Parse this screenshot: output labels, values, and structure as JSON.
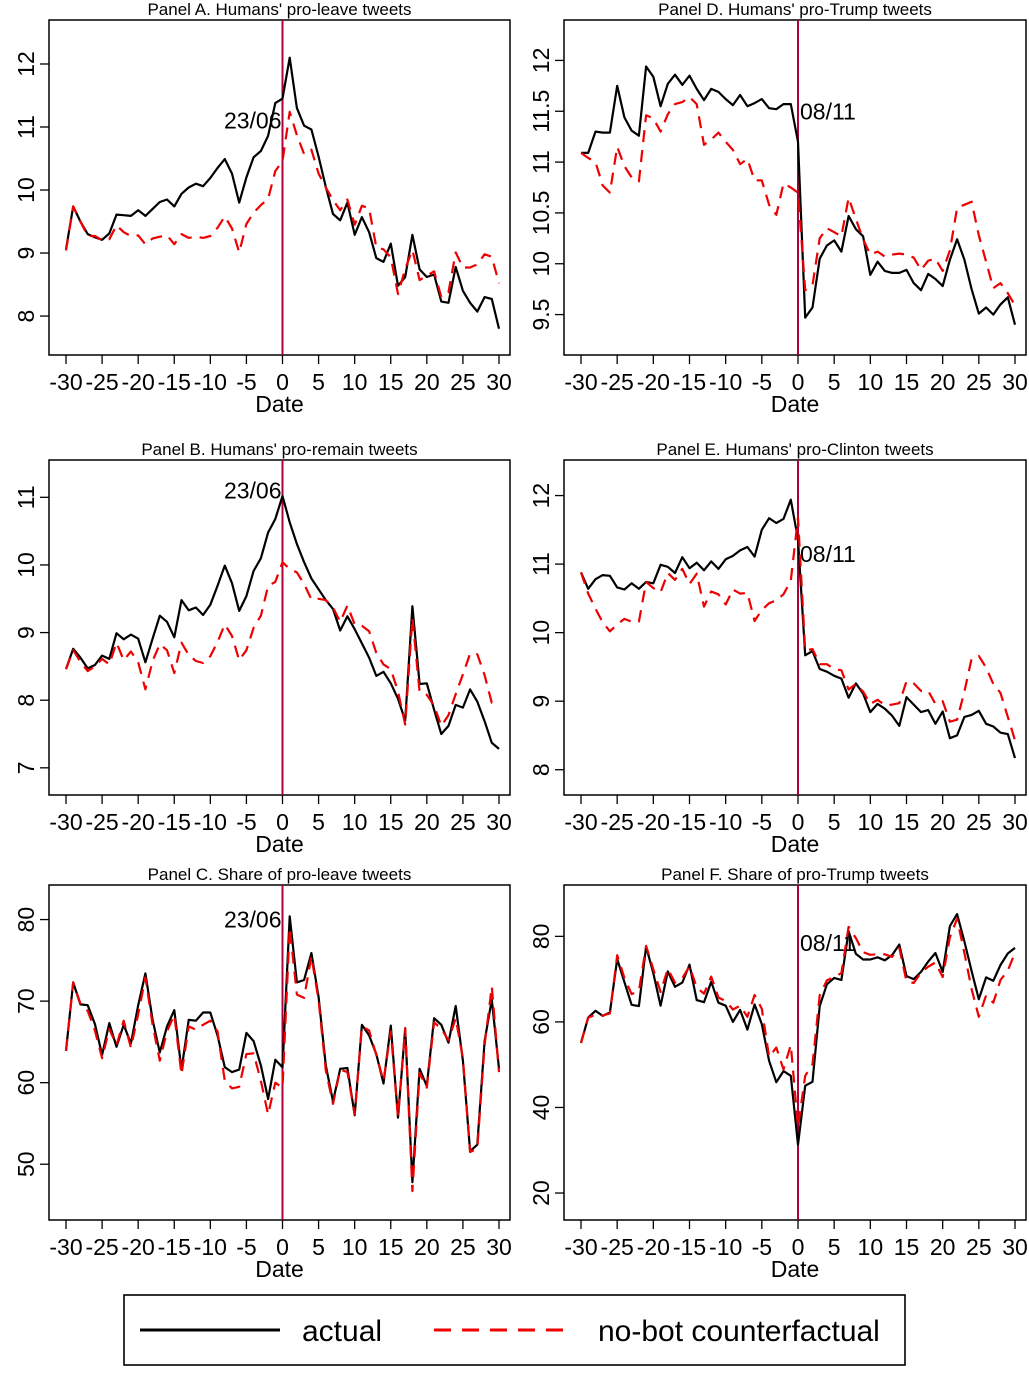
{
  "chart_data": [
    {
      "type": "line",
      "title": "Panel A. Humans' pro-leave tweets",
      "xlabel": "Date",
      "ylabel": "",
      "xlim": [
        -30,
        30
      ],
      "ylim": [
        7.62,
        12.46
      ],
      "x_ticks": [
        -30,
        -25,
        -20,
        -15,
        -10,
        -5,
        0,
        5,
        10,
        15,
        20,
        25,
        30
      ],
      "y_ticks": [
        8,
        9,
        10,
        11,
        12
      ],
      "event": {
        "x": 0,
        "label": "23/06",
        "label_y": 11.1,
        "label_side": "left"
      },
      "series": [
        {
          "name": "actual",
          "color": "#000000",
          "dash": "solid",
          "values": [
            9.06,
            9.74,
            9.5,
            9.3,
            9.25,
            9.21,
            9.31,
            9.61,
            9.6,
            9.59,
            9.68,
            9.59,
            9.7,
            9.81,
            9.85,
            9.74,
            9.94,
            10.04,
            10.1,
            10.06,
            10.19,
            10.35,
            10.49,
            10.26,
            9.8,
            10.2,
            10.52,
            10.62,
            10.86,
            11.38,
            11.45,
            12.1,
            11.3,
            11.02,
            10.96,
            10.53,
            10.05,
            9.62,
            9.52,
            9.8,
            9.29,
            9.57,
            9.33,
            8.92,
            8.86,
            9.15,
            8.48,
            8.62,
            9.29,
            8.74,
            8.62,
            8.66,
            8.23,
            8.21,
            8.78,
            8.4,
            8.21,
            8.07,
            8.3,
            8.27,
            7.8
          ]
        },
        {
          "name": "no-bot counterfactual",
          "color": "#ee0000",
          "dash": "12,8",
          "values": [
            9.04,
            9.74,
            9.5,
            9.27,
            9.27,
            9.2,
            9.22,
            9.44,
            9.33,
            9.27,
            9.28,
            9.14,
            9.23,
            9.26,
            9.28,
            9.14,
            9.3,
            9.24,
            9.26,
            9.24,
            9.27,
            9.4,
            9.58,
            9.39,
            9.01,
            9.46,
            9.64,
            9.76,
            9.86,
            10.3,
            10.46,
            11.24,
            10.87,
            10.57,
            10.64,
            10.26,
            10.04,
            9.84,
            9.68,
            9.85,
            9.45,
            9.75,
            9.71,
            9.09,
            9.06,
            8.93,
            8.35,
            8.75,
            9.05,
            8.57,
            8.64,
            8.71,
            8.3,
            8.38,
            9.01,
            8.77,
            8.77,
            8.82,
            8.98,
            8.94,
            8.52
          ]
        }
      ]
    },
    {
      "type": "line",
      "title": "Panel D. Humans' pro-Trump tweets",
      "xlabel": "Date",
      "ylabel": "",
      "xlim": [
        -30,
        30
      ],
      "ylim": [
        9.25,
        12.25
      ],
      "x_ticks": [
        -30,
        -25,
        -20,
        -15,
        -10,
        -5,
        0,
        5,
        10,
        15,
        20,
        25,
        30
      ],
      "y_ticks": [
        9.5,
        10,
        10.5,
        11,
        11.5,
        12
      ],
      "event": {
        "x": 0,
        "label": "08/11",
        "label_y": 11.5,
        "label_side": "right"
      },
      "series": [
        {
          "name": "actual",
          "color": "#000000",
          "dash": "solid",
          "values": [
            11.09,
            11.09,
            11.3,
            11.29,
            11.29,
            11.75,
            11.44,
            11.31,
            11.26,
            11.94,
            11.84,
            11.55,
            11.77,
            11.86,
            11.76,
            11.85,
            11.72,
            11.61,
            11.72,
            11.69,
            11.62,
            11.56,
            11.66,
            11.55,
            11.58,
            11.62,
            11.53,
            11.52,
            11.57,
            11.57,
            11.2,
            9.47,
            9.57,
            10.05,
            10.18,
            10.23,
            10.12,
            10.47,
            10.34,
            10.27,
            9.89,
            10.02,
            9.93,
            9.91,
            9.91,
            9.94,
            9.81,
            9.74,
            9.9,
            9.85,
            9.78,
            10.04,
            10.24,
            10.04,
            9.75,
            9.51,
            9.57,
            9.5,
            9.6,
            9.67,
            9.4
          ]
        },
        {
          "name": "no-bot counterfactual",
          "color": "#ee0000",
          "dash": "12,8",
          "values": [
            11.09,
            11.04,
            11.0,
            10.77,
            10.7,
            11.15,
            10.96,
            10.85,
            10.81,
            11.46,
            11.43,
            11.3,
            11.47,
            11.57,
            11.59,
            11.64,
            11.57,
            11.17,
            11.22,
            11.29,
            11.2,
            11.12,
            10.98,
            11.03,
            10.82,
            10.82,
            10.58,
            10.48,
            10.79,
            10.75,
            10.7,
            9.74,
            9.79,
            10.25,
            10.35,
            10.31,
            10.27,
            10.65,
            10.44,
            10.24,
            10.09,
            10.12,
            10.07,
            10.09,
            10.1,
            10.09,
            10.06,
            9.94,
            10.03,
            10.05,
            9.93,
            10.13,
            10.55,
            10.58,
            10.61,
            10.28,
            10.02,
            9.76,
            9.81,
            9.71,
            9.59
          ]
        }
      ]
    },
    {
      "type": "line",
      "title": "Panel B. Humans' pro-remain tweets",
      "xlabel": "Date",
      "ylabel": "",
      "xlim": [
        -30,
        30
      ],
      "ylim": [
        6.82,
        11.33
      ],
      "x_ticks": [
        -30,
        -25,
        -20,
        -15,
        -10,
        -5,
        0,
        5,
        10,
        15,
        20,
        25,
        30
      ],
      "y_ticks": [
        7,
        8,
        9,
        10,
        11
      ],
      "event": {
        "x": 0,
        "label": "23/06",
        "label_y": 11.1,
        "label_side": "left"
      },
      "series": [
        {
          "name": "actual",
          "color": "#000000",
          "dash": "solid",
          "values": [
            8.46,
            8.76,
            8.63,
            8.47,
            8.52,
            8.66,
            8.61,
            8.99,
            8.9,
            8.97,
            8.91,
            8.56,
            8.91,
            9.25,
            9.16,
            8.93,
            9.48,
            9.33,
            9.37,
            9.26,
            9.41,
            9.69,
            9.99,
            9.73,
            9.32,
            9.54,
            9.91,
            10.1,
            10.48,
            10.68,
            11.02,
            10.63,
            10.31,
            10.04,
            9.8,
            9.64,
            9.48,
            9.35,
            9.03,
            9.24,
            9.05,
            8.84,
            8.63,
            8.36,
            8.42,
            8.25,
            8.02,
            7.7,
            9.39,
            8.24,
            8.25,
            7.86,
            7.5,
            7.62,
            7.93,
            7.89,
            8.16,
            7.98,
            7.69,
            7.37,
            7.28
          ]
        },
        {
          "name": "no-bot counterfactual",
          "color": "#ee0000",
          "dash": "12,8",
          "values": [
            8.46,
            8.74,
            8.57,
            8.43,
            8.5,
            8.61,
            8.53,
            8.85,
            8.59,
            8.72,
            8.56,
            8.16,
            8.58,
            8.83,
            8.74,
            8.4,
            8.85,
            8.67,
            8.58,
            8.55,
            8.65,
            8.86,
            9.12,
            8.95,
            8.59,
            8.74,
            9.07,
            9.25,
            9.69,
            9.75,
            10.04,
            9.94,
            9.89,
            9.72,
            9.49,
            9.5,
            9.48,
            9.37,
            9.16,
            9.4,
            9.12,
            9.1,
            9.02,
            8.7,
            8.53,
            8.46,
            8.13,
            7.64,
            9.22,
            8.12,
            8.08,
            7.92,
            7.62,
            7.78,
            8.09,
            8.38,
            8.69,
            8.68,
            8.37,
            7.96,
            7.96
          ]
        }
      ]
    },
    {
      "type": "line",
      "title": "Panel E. Humans' pro-Clinton tweets",
      "xlabel": "Date",
      "ylabel": "",
      "xlim": [
        -30,
        30
      ],
      "ylim": [
        7.85,
        12.3
      ],
      "x_ticks": [
        -30,
        -25,
        -20,
        -15,
        -10,
        -5,
        0,
        5,
        10,
        15,
        20,
        25,
        30
      ],
      "y_ticks": [
        8,
        9,
        10,
        11,
        12
      ],
      "event": {
        "x": 0,
        "label": "08/11",
        "label_y": 11.15,
        "label_side": "right"
      },
      "series": [
        {
          "name": "actual",
          "color": "#000000",
          "dash": "solid",
          "values": [
            10.88,
            10.64,
            10.78,
            10.84,
            10.83,
            10.66,
            10.63,
            10.72,
            10.64,
            10.74,
            10.72,
            10.99,
            10.96,
            10.87,
            11.1,
            10.94,
            11.02,
            10.91,
            11.04,
            10.93,
            11.07,
            11.12,
            11.2,
            11.25,
            11.11,
            11.5,
            11.67,
            11.6,
            11.66,
            11.94,
            11.36,
            9.67,
            9.73,
            9.47,
            9.43,
            9.37,
            9.33,
            9.05,
            9.26,
            9.11,
            8.84,
            8.96,
            8.89,
            8.79,
            8.64,
            9.06,
            8.95,
            8.84,
            8.87,
            8.67,
            8.85,
            8.46,
            8.5,
            8.77,
            8.8,
            8.86,
            8.67,
            8.63,
            8.54,
            8.52,
            8.17
          ]
        },
        {
          "name": "no-bot counterfactual",
          "color": "#ee0000",
          "dash": "12,8",
          "values": [
            10.88,
            10.57,
            10.35,
            10.15,
            10.02,
            10.12,
            10.2,
            10.16,
            10.16,
            10.74,
            10.65,
            10.59,
            10.87,
            10.77,
            10.93,
            10.71,
            10.86,
            10.38,
            10.6,
            10.56,
            10.41,
            10.63,
            10.57,
            10.58,
            10.17,
            10.33,
            10.43,
            10.47,
            10.56,
            10.76,
            11.68,
            9.74,
            9.76,
            9.54,
            9.54,
            9.47,
            9.45,
            9.17,
            9.25,
            9.14,
            8.96,
            9.02,
            8.94,
            8.95,
            8.97,
            9.29,
            9.26,
            9.15,
            9.15,
            8.96,
            9.0,
            8.7,
            8.73,
            9.14,
            9.62,
            9.66,
            9.49,
            9.25,
            9.12,
            8.77,
            8.43
          ]
        }
      ]
    },
    {
      "type": "line",
      "title": "Panel C. Share of pro-leave tweets",
      "xlabel": "Date",
      "ylabel": "",
      "xlim": [
        -30,
        30
      ],
      "ylim": [
        45,
        82.4
      ],
      "x_ticks": [
        -30,
        -25,
        -20,
        -15,
        -10,
        -5,
        0,
        5,
        10,
        15,
        20,
        25,
        30
      ],
      "y_ticks": [
        50,
        60,
        70,
        80
      ],
      "event": {
        "x": 0,
        "label": "23/06",
        "label_y": 80,
        "label_side": "left"
      },
      "series": [
        {
          "name": "actual",
          "color": "#000000",
          "dash": "solid",
          "values": [
            63.9,
            72.3,
            69.6,
            69.5,
            67.2,
            63.4,
            67.3,
            64.4,
            67.1,
            64.8,
            69.5,
            73.4,
            67.7,
            63.7,
            66.9,
            68.9,
            61.6,
            67.7,
            67.6,
            68.6,
            68.6,
            65.8,
            61.9,
            61.3,
            61.6,
            66.1,
            65.1,
            62.1,
            58.0,
            62.8,
            61.9,
            80.4,
            72.3,
            72.6,
            75.9,
            70.5,
            62.1,
            57.7,
            61.7,
            61.8,
            56.0,
            67.1,
            65.8,
            63.5,
            59.9,
            67.0,
            55.7,
            66.6,
            47.8,
            61.7,
            59.6,
            67.9,
            67.1,
            64.9,
            69.4,
            62.7,
            51.6,
            52.4,
            65.1,
            70.2,
            61.7
          ]
        },
        {
          "name": "no-bot counterfactual",
          "color": "#ee0000",
          "dash": "12,8",
          "values": [
            63.9,
            72.3,
            69.7,
            68.8,
            66.4,
            63.0,
            66.6,
            64.6,
            67.6,
            64.3,
            68.4,
            72.9,
            67.1,
            62.7,
            66.3,
            68.3,
            61.0,
            66.9,
            66.5,
            67.1,
            67.6,
            66.3,
            60.2,
            59.3,
            59.5,
            63.5,
            63.6,
            60.2,
            56.1,
            60.0,
            59.4,
            79.0,
            70.8,
            70.4,
            75.5,
            70.1,
            61.5,
            57.4,
            61.6,
            61.3,
            56.1,
            66.9,
            66.4,
            63.4,
            60.2,
            66.3,
            55.8,
            66.7,
            46.7,
            61.2,
            59.4,
            67.4,
            66.6,
            65.2,
            67.9,
            63.0,
            51.5,
            51.9,
            64.6,
            71.8,
            61.3
          ]
        }
      ]
    },
    {
      "type": "line",
      "title": "Panel F. Share of pro-Trump tweets",
      "xlabel": "Date",
      "ylabel": "",
      "xlim": [
        -30,
        30
      ],
      "ylim": [
        17.2,
        88.5
      ],
      "x_ticks": [
        -30,
        -25,
        -20,
        -15,
        -10,
        -5,
        0,
        5,
        10,
        15,
        20,
        25,
        30
      ],
      "y_ticks": [
        20,
        40,
        60,
        80
      ],
      "event": {
        "x": 0,
        "label": "08/11",
        "label_y": 78.5,
        "label_side": "right"
      },
      "series": [
        {
          "name": "actual",
          "color": "#000000",
          "dash": "solid",
          "values": [
            55.1,
            61.0,
            62.6,
            61.4,
            62.2,
            74.7,
            69.3,
            64.0,
            63.7,
            77.6,
            71.4,
            63.8,
            71.8,
            68.2,
            69.2,
            73.4,
            65.1,
            64.6,
            69.4,
            64.5,
            63.8,
            60.0,
            62.8,
            58.2,
            64.1,
            59.5,
            50.9,
            45.9,
            48.5,
            47.4,
            31.3,
            45.1,
            46.0,
            63.7,
            68.8,
            70.3,
            69.8,
            81.2,
            75.9,
            74.6,
            74.6,
            75.1,
            74.4,
            75.6,
            78.1,
            70.7,
            70.0,
            71.7,
            74.1,
            76.1,
            71.7,
            82.4,
            85.2,
            78.8,
            71.9,
            65.3,
            70.4,
            69.6,
            73.3,
            76.0,
            77.3
          ]
        },
        {
          "name": "no-bot counterfactual",
          "color": "#ee0000",
          "dash": "12,8",
          "values": [
            55.1,
            61.0,
            61.7,
            61.5,
            62.0,
            75.6,
            70.3,
            66.5,
            67.2,
            77.8,
            72.3,
            67.0,
            72.4,
            69.2,
            70.2,
            73.0,
            68.1,
            66.6,
            70.6,
            65.7,
            64.9,
            62.9,
            63.8,
            61.2,
            66.3,
            63.1,
            51.8,
            54.0,
            48.9,
            54.6,
            35.5,
            47.4,
            50.1,
            66.2,
            69.7,
            70.5,
            71.4,
            82.2,
            79.6,
            76.3,
            75.7,
            75.8,
            75.8,
            75.2,
            77.3,
            69.5,
            69.1,
            71.5,
            72.9,
            73.9,
            70.5,
            79.8,
            84.1,
            76.1,
            67.7,
            61.2,
            66.2,
            64.5,
            69.8,
            72.0,
            76.2
          ]
        }
      ]
    }
  ],
  "legend": {
    "items": [
      {
        "label": "actual",
        "color": "#000000",
        "dash": "solid"
      },
      {
        "label": "no-bot counterfactual",
        "color": "#ee0000",
        "dash": "12,8"
      }
    ]
  },
  "event_line_color": "#b0003a"
}
